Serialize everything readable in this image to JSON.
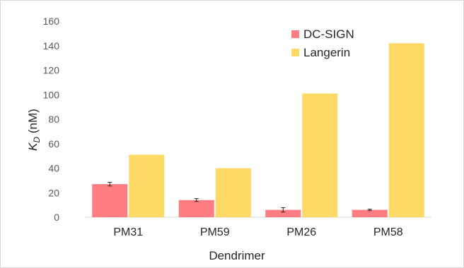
{
  "chart_data": {
    "type": "bar",
    "categories": [
      "PM31",
      "PM59",
      "PM26",
      "PM58"
    ],
    "series": [
      {
        "name": "DC-SIGN",
        "values": [
          27,
          14,
          6,
          6
        ],
        "errors": [
          1.5,
          1.2,
          1.8,
          0.6
        ],
        "color": "#ff7c80"
      },
      {
        "name": "Langerin",
        "values": [
          51,
          40,
          101,
          142
        ],
        "color": "#ffd966"
      }
    ],
    "xlabel": "Dendrimer",
    "ylabel_main": "K",
    "ylabel_sub": "D",
    "ylabel_unit": " (nM)",
    "ylim": [
      0,
      160
    ],
    "yticks": [
      "0",
      "20",
      "40",
      "60",
      "80",
      "100",
      "120",
      "140",
      "160"
    ],
    "grid": false,
    "legend_position": "top-right"
  }
}
